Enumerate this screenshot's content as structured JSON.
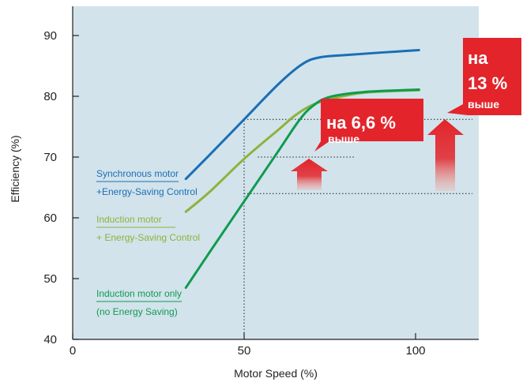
{
  "chart_data": {
    "type": "line",
    "xlabel": "Motor Speed (%)",
    "ylabel": "Efficiency (%)",
    "xlim": [
      0,
      118
    ],
    "ylim": [
      40,
      95
    ],
    "xticks": [
      0,
      50,
      100
    ],
    "yticks": [
      40,
      50,
      60,
      70,
      80,
      90
    ],
    "grid": false,
    "legend": "inline-left",
    "series": [
      {
        "name_lines": [
          "Synchronous motor",
          "+Energy-Saving Control"
        ],
        "color": "#1a6fb5",
        "points": [
          [
            33,
            66.4
          ],
          [
            40,
            70.4
          ],
          [
            50,
            76.2
          ],
          [
            60,
            82.0
          ],
          [
            67,
            85.3
          ],
          [
            72,
            86.4
          ],
          [
            80,
            86.8
          ],
          [
            90,
            87.2
          ],
          [
            101,
            87.6
          ]
        ]
      },
      {
        "name_lines": [
          "Induction motor",
          "+ Energy-Saving Control"
        ],
        "color": "#8db33b",
        "points": [
          [
            33,
            61.0
          ],
          [
            40,
            64.3
          ],
          [
            50,
            69.7
          ],
          [
            60,
            74.5
          ],
          [
            65,
            76.9
          ],
          [
            70,
            78.6
          ],
          [
            75,
            79.5
          ],
          [
            85,
            80.6
          ],
          [
            101,
            81.0
          ]
        ]
      },
      {
        "name_lines": [
          "Induction motor only",
          "(no Energy Saving)"
        ],
        "color": "#0f9b4e",
        "points": [
          [
            33,
            48.5
          ],
          [
            40,
            54.4
          ],
          [
            50,
            62.7
          ],
          [
            60,
            71.0
          ],
          [
            66,
            76.0
          ],
          [
            70,
            78.4
          ],
          [
            75,
            79.9
          ],
          [
            85,
            80.7
          ],
          [
            101,
            81.1
          ]
        ]
      }
    ],
    "reference_lines": [
      {
        "type": "v",
        "x": 50,
        "y_from": 40,
        "y_to": 76.2
      },
      {
        "type": "h",
        "y": 76.2,
        "x_from": 50,
        "x_to": 118
      },
      {
        "type": "h",
        "y": 70.0,
        "x_from": 54,
        "x_to": 82
      },
      {
        "type": "h",
        "y": 64.0,
        "x_from": 50,
        "x_to": 118
      }
    ],
    "annotations": [
      {
        "lines": [
          "на 6,6 %",
          "выше"
        ]
      },
      {
        "lines": [
          "на",
          "13 %",
          "выше"
        ]
      }
    ]
  },
  "colors": {
    "plot_bg": "#d2e3ec",
    "callout": "#e3242b",
    "arrow": "#e3242b",
    "axis": "#231f20"
  }
}
